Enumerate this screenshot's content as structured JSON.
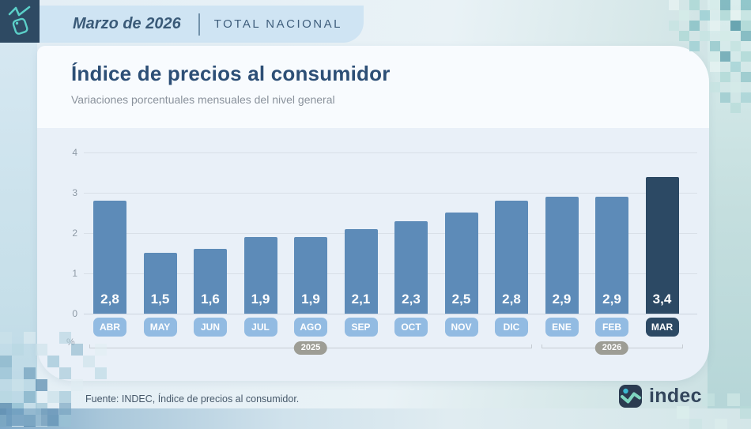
{
  "header": {
    "period": "Marzo de 2026",
    "scope": "TOTAL NACIONAL"
  },
  "title": "Índice de precios al consumidor",
  "subtitle": "Variaciones porcentuales mensuales del nivel general",
  "chart_data": {
    "type": "bar",
    "categories": [
      "ABR",
      "MAY",
      "JUN",
      "JUL",
      "AGO",
      "SEP",
      "OCT",
      "NOV",
      "DIC",
      "ENE",
      "FEB",
      "MAR"
    ],
    "values": [
      2.8,
      1.5,
      1.6,
      1.9,
      1.9,
      2.1,
      2.3,
      2.5,
      2.8,
      2.9,
      2.9,
      3.4
    ],
    "value_labels": [
      "2,8",
      "1,5",
      "1,6",
      "1,9",
      "1,9",
      "2,1",
      "2,3",
      "2,5",
      "2,8",
      "2,9",
      "2,9",
      "3,4"
    ],
    "highlight_index": 11,
    "ylabel": "%",
    "yticks": [
      0,
      1,
      2,
      3,
      4
    ],
    "ylim": [
      0,
      4
    ],
    "grid": true,
    "legend": "none",
    "year_groups": [
      {
        "label": "2025",
        "from": 0,
        "to": 8
      },
      {
        "label": "2026",
        "from": 9,
        "to": 11
      }
    ],
    "colors": {
      "bar": "#5d8bb8",
      "bar_highlight": "#2c4964",
      "month_pill": "#92bbe2",
      "month_pill_highlight": "#2c4964",
      "year_pill": "#9d9d95"
    }
  },
  "footer": {
    "source": "Fuente: INDEC, Índice de precios al consumidor.",
    "logo_text": "indec"
  }
}
